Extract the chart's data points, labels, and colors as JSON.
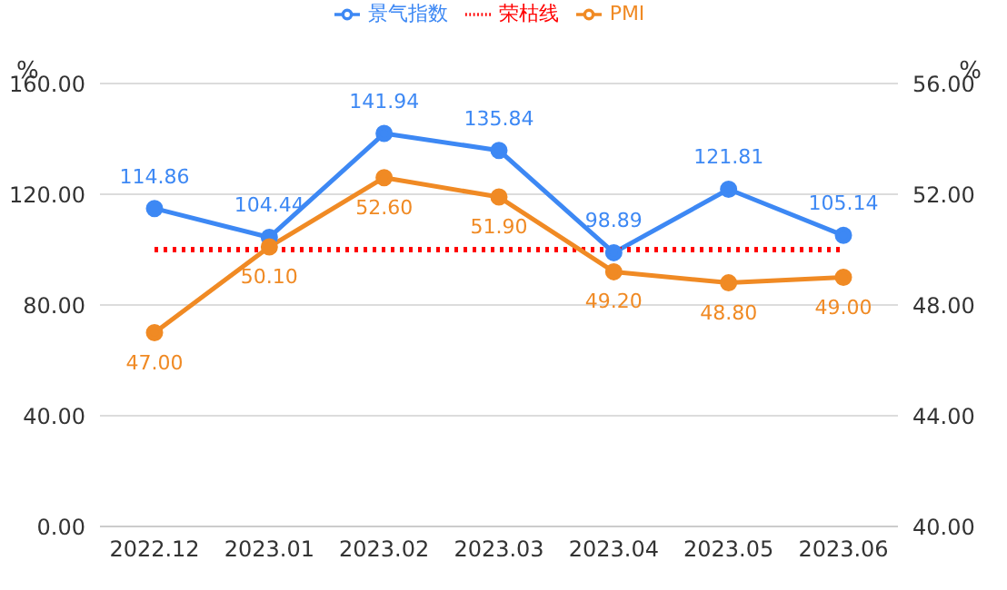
{
  "chart_data": {
    "type": "line",
    "categories": [
      "2022.12",
      "2023.01",
      "2023.02",
      "2023.03",
      "2023.04",
      "2023.05",
      "2023.06"
    ],
    "ylabel": "%",
    "y2label": "%",
    "ylim": [
      0,
      160
    ],
    "yticks": [
      {
        "value": 0,
        "label": "0.00"
      },
      {
        "value": 40,
        "label": "40.00"
      },
      {
        "value": 80,
        "label": "80.00"
      },
      {
        "value": 120,
        "label": "120.00"
      },
      {
        "value": 160,
        "label": "160.00"
      }
    ],
    "y2lim": [
      40,
      56
    ],
    "y2ticks": [
      {
        "value": 40,
        "label": "40.00"
      },
      {
        "value": 44,
        "label": "44.00"
      },
      {
        "value": 48,
        "label": "48.00"
      },
      {
        "value": 52,
        "label": "52.00"
      },
      {
        "value": 56,
        "label": "56.00"
      }
    ],
    "grid": "y",
    "legend": "top",
    "series": [
      {
        "name": "景气指数",
        "color": "#3d88f4",
        "marker": "circle",
        "line_style": "solid",
        "values": [
          114.86,
          104.44,
          141.94,
          135.84,
          98.89,
          121.81,
          105.14
        ],
        "value_labels": [
          "114.86",
          "104.44",
          "141.94",
          "135.84",
          "98.89",
          "121.81",
          "105.14"
        ]
      },
      {
        "name": "荣枯线",
        "color": "#ff0000",
        "marker": "none",
        "line_style": "dotted",
        "values": [
          100,
          100,
          100,
          100,
          100,
          100,
          100
        ]
      },
      {
        "name": "PMI",
        "color": "#f08a24",
        "marker": "circle",
        "line_style": "solid",
        "axis": "y2",
        "values": [
          47.0,
          50.1,
          52.6,
          51.9,
          49.2,
          48.8,
          49.0
        ],
        "value_labels": [
          "47.00",
          "50.10",
          "52.60",
          "51.90",
          "49.20",
          "48.80",
          "49.00"
        ]
      }
    ]
  }
}
